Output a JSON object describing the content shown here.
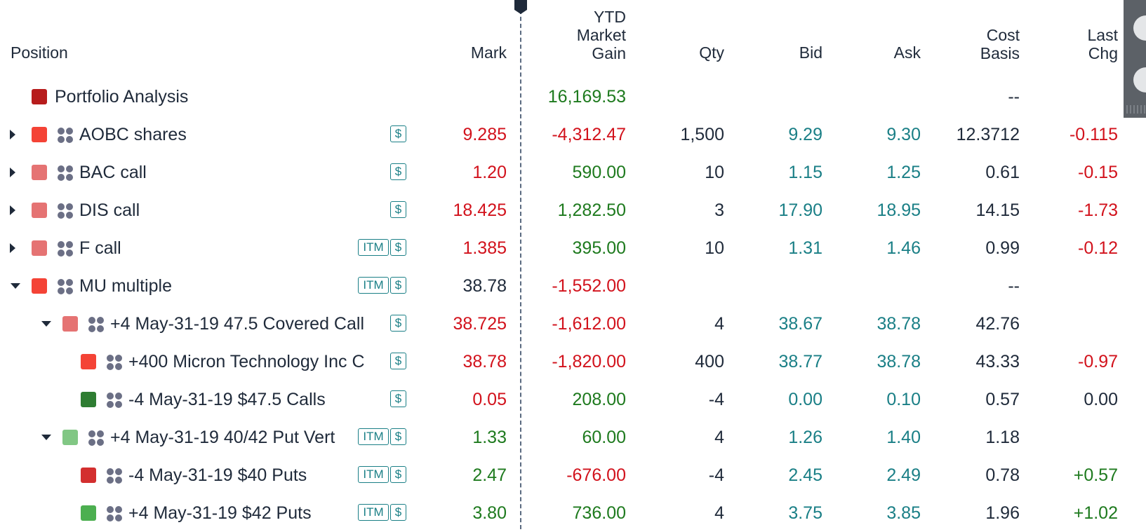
{
  "headers": {
    "position": "Position",
    "mark": "Mark",
    "ytd_line1": "YTD",
    "ytd_line2": "Market",
    "ytd_line3": "Gain",
    "qty": "Qty",
    "bid": "Bid",
    "ask": "Ask",
    "cost_line1": "Cost",
    "cost_line2": "Basis",
    "last_line1": "Last",
    "last_line2": "Chg"
  },
  "badges": {
    "itm": "ITM",
    "dollar": "$"
  },
  "rows": [
    {
      "name": "Portfolio Analysis",
      "ytd": "16,169.53",
      "cost": "--"
    },
    {
      "name": "AOBC shares",
      "mark": "9.285",
      "ytd": "-4,312.47",
      "qty": "1,500",
      "bid": "9.29",
      "ask": "9.30",
      "cost": "12.3712",
      "last": "-0.115"
    },
    {
      "name": "BAC call",
      "mark": "1.20",
      "ytd": "590.00",
      "qty": "10",
      "bid": "1.15",
      "ask": "1.25",
      "cost": "0.61",
      "last": "-0.15"
    },
    {
      "name": "DIS call",
      "mark": "18.425",
      "ytd": "1,282.50",
      "qty": "3",
      "bid": "17.90",
      "ask": "18.95",
      "cost": "14.15",
      "last": "-1.73"
    },
    {
      "name": "F call",
      "mark": "1.385",
      "ytd": "395.00",
      "qty": "10",
      "bid": "1.31",
      "ask": "1.46",
      "cost": "0.99",
      "last": "-0.12"
    },
    {
      "name": "MU multiple",
      "mark": "38.78",
      "ytd": "-1,552.00",
      "cost": "--"
    },
    {
      "name": "+4 May-31-19 47.5 Covered Call",
      "mark": "38.725",
      "ytd": "-1,612.00",
      "qty": "4",
      "bid": "38.67",
      "ask": "38.78",
      "cost": "42.76"
    },
    {
      "name": "+400 Micron Technology Inc C",
      "mark": "38.78",
      "ytd": "-1,820.00",
      "qty": "400",
      "bid": "38.77",
      "ask": "38.78",
      "cost": "43.33",
      "last": "-0.97"
    },
    {
      "name": "-4 May-31-19 $47.5 Calls",
      "mark": "0.05",
      "ytd": "208.00",
      "qty": "-4",
      "bid": "0.00",
      "ask": "0.10",
      "cost": "0.57",
      "last": "0.00"
    },
    {
      "name": "+4 May-31-19 40/42 Put Vert",
      "mark": "1.33",
      "ytd": "60.00",
      "qty": "4",
      "bid": "1.26",
      "ask": "1.40",
      "cost": "1.18"
    },
    {
      "name": "-4 May-31-19 $40 Puts",
      "mark": "2.47",
      "ytd": "-676.00",
      "qty": "-4",
      "bid": "2.45",
      "ask": "2.49",
      "cost": "0.78",
      "last": "+0.57"
    },
    {
      "name": "+4 May-31-19 $42 Puts",
      "mark": "3.80",
      "ytd": "736.00",
      "qty": "4",
      "bid": "3.75",
      "ask": "3.85",
      "cost": "1.96",
      "last": "+1.02"
    }
  ],
  "colors": {
    "negative": "#d2121c",
    "positive": "#1e7a1e",
    "bid_ask": "#1a7f86",
    "text": "#1f2a3a",
    "swatch_dark_red": "#b71c1c",
    "swatch_red": "#f44336",
    "swatch_light_red": "#e57373",
    "swatch_dark_green": "#2e7d32",
    "swatch_light_green": "#81c784",
    "swatch_green": "#4caf50"
  }
}
